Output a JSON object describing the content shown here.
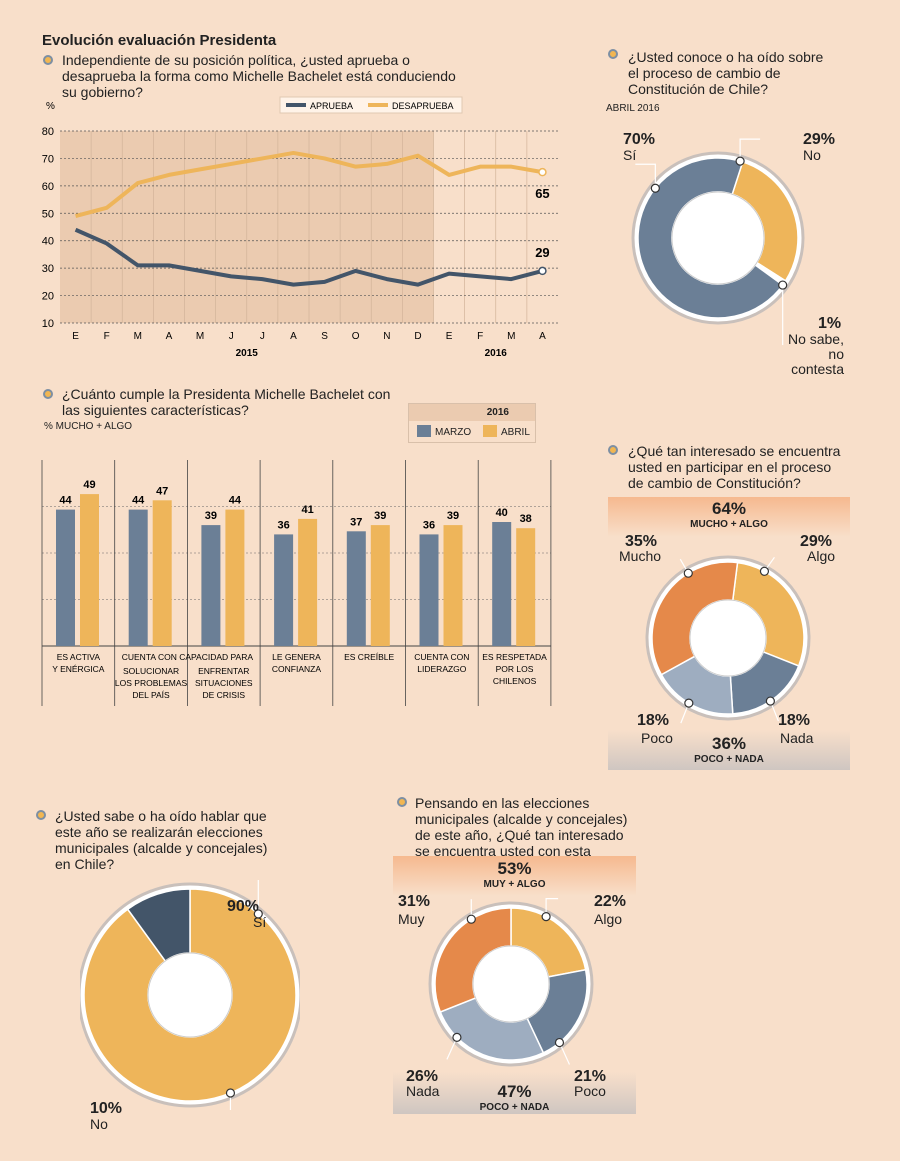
{
  "colors": {
    "slate": "#6b7f96",
    "gold": "#eeb55a",
    "orange": "#e5894a",
    "light_slate": "#9eadc0",
    "dark_slate": "#435569",
    "grid_bg": "#ebcbb0",
    "bg": "#f8dfca"
  },
  "header": {
    "title": "Evolución evaluación Presidenta"
  },
  "chart1": {
    "question": "Independiente de su posición política, ¿usted aprueba o desaprueba la forma como Michelle Bachelet está conduciendo su gobierno?",
    "unit": "%"
  },
  "chart2": {
    "question": "¿Usted conoce o ha oído sobre el proceso de cambio de Constitución de Chile?",
    "date": "ABRIL 2016",
    "labels": {
      "si_pct": "70%",
      "si": "Sí",
      "no_pct": "29%",
      "no": "No",
      "ns_pct": "1%",
      "ns1": "No sabe,",
      "ns2": "no contesta"
    }
  },
  "chart3": {
    "question": "¿Cuánto cumple la Presidenta Michelle Bachelet con las siguientes características?",
    "subtitle": "% MUCHO + ALGO",
    "legend_year": "2016",
    "legend_marzo": "MARZO",
    "legend_abril": "ABRIL"
  },
  "chart4": {
    "question": "¿Qué tan interesado se encuentra usted en participar en el proceso de cambio de Constitución?",
    "top_pct": "64%",
    "top_lbl": "MUCHO + ALGO",
    "bottom_pct": "36%",
    "bottom_lbl": "POCO + NADA",
    "labels": {
      "mucho_pct": "35%",
      "mucho": "Mucho",
      "algo_pct": "29%",
      "algo": "Algo",
      "poco_pct": "18%",
      "poco": "Poco",
      "nada_pct": "18%",
      "nada": "Nada"
    }
  },
  "chart5": {
    "question": "¿Usted sabe o ha oído hablar que este año se realizarán elecciones municipales (alcalde y concejales) en Chile?",
    "labels": {
      "si_pct": "90%",
      "si": "Sí",
      "no_pct": "10%",
      "no": "No"
    }
  },
  "chart6": {
    "question": "Pensando en las elecciones municipales (alcalde y concejales) de este año, ¿Qué tan interesado se encuentra usted con esta votación?",
    "top_pct": "53%",
    "top_lbl": "MUY + ALGO",
    "bottom_pct": "47%",
    "bottom_lbl": "POCO + NADA",
    "labels": {
      "muy_pct": "31%",
      "muy": "Muy",
      "algo_pct": "22%",
      "algo": "Algo",
      "nada_pct": "26%",
      "nada": "Nada",
      "poco_pct": "21%",
      "poco": "Poco"
    }
  },
  "chart_data": [
    {
      "type": "line",
      "title": "Evolución evaluación Presidenta",
      "ylabel": "%",
      "ylim": [
        10,
        80
      ],
      "categories": [
        "E",
        "F",
        "M",
        "A",
        "M",
        "J",
        "J",
        "A",
        "S",
        "O",
        "N",
        "D",
        "E",
        "F",
        "M",
        "A"
      ],
      "years": [
        "2015",
        "2016"
      ],
      "series": [
        {
          "name": "APRUEBA",
          "values": [
            44,
            39,
            31,
            31,
            29,
            27,
            26,
            24,
            25,
            29,
            26,
            24,
            28,
            27,
            26,
            29
          ],
          "end_label": "29"
        },
        {
          "name": "DESAPRUEBA",
          "values": [
            49,
            52,
            61,
            64,
            66,
            68,
            70,
            72,
            70,
            67,
            68,
            71,
            64,
            67,
            67,
            65
          ],
          "end_label": "65"
        }
      ]
    },
    {
      "type": "pie",
      "title": "¿Usted conoce o ha oído sobre el proceso de cambio de Constitución de Chile?",
      "labels": [
        "No",
        "No sabe, no contesta",
        "Sí"
      ],
      "values": [
        29,
        1,
        70
      ]
    },
    {
      "type": "bar",
      "title": "¿Cuánto cumple la Presidenta Michelle Bachelet con las siguientes características?",
      "categories": [
        [
          "ES ACTIVA",
          "Y ENÉRGICA"
        ],
        [
          "SOLUCIONAR",
          "LOS PROBLEMAS",
          "DEL PAÍS"
        ],
        [
          "ENFRENTAR",
          "SITUACIONES",
          "DE CRISIS"
        ],
        [
          "LE GENERA",
          "CONFIANZA"
        ],
        [
          "ES CREÍBLE"
        ],
        [
          "CUENTA CON",
          "LIDERAZGO"
        ],
        [
          "ES RESPETADA",
          "POR LOS",
          "CHILENOS"
        ]
      ],
      "shared_header": "CUENTA CON CAPACIDAD PARA",
      "series": [
        {
          "name": "MARZO",
          "values": [
            44,
            44,
            39,
            36,
            37,
            36,
            40
          ]
        },
        {
          "name": "ABRIL",
          "values": [
            49,
            47,
            44,
            41,
            39,
            39,
            38
          ]
        }
      ],
      "ylim": [
        0,
        60
      ]
    },
    {
      "type": "pie",
      "title": "¿Qué tan interesado se encuentra usted en participar en el proceso de cambio de Constitución?",
      "labels": [
        "Algo",
        "Nada",
        "Poco",
        "Mucho"
      ],
      "values": [
        29,
        18,
        18,
        35
      ]
    },
    {
      "type": "pie",
      "title": "¿Usted sabe o ha oído hablar que este año se realizarán elecciones municipales (alcalde y concejales) en Chile?",
      "labels": [
        "Sí",
        "No"
      ],
      "values": [
        90,
        10
      ]
    },
    {
      "type": "pie",
      "title": "¿Qué tan interesado se encuentra usted con esta votación?",
      "labels": [
        "Algo",
        "Poco",
        "Nada",
        "Muy"
      ],
      "values": [
        22,
        21,
        26,
        31
      ]
    }
  ]
}
